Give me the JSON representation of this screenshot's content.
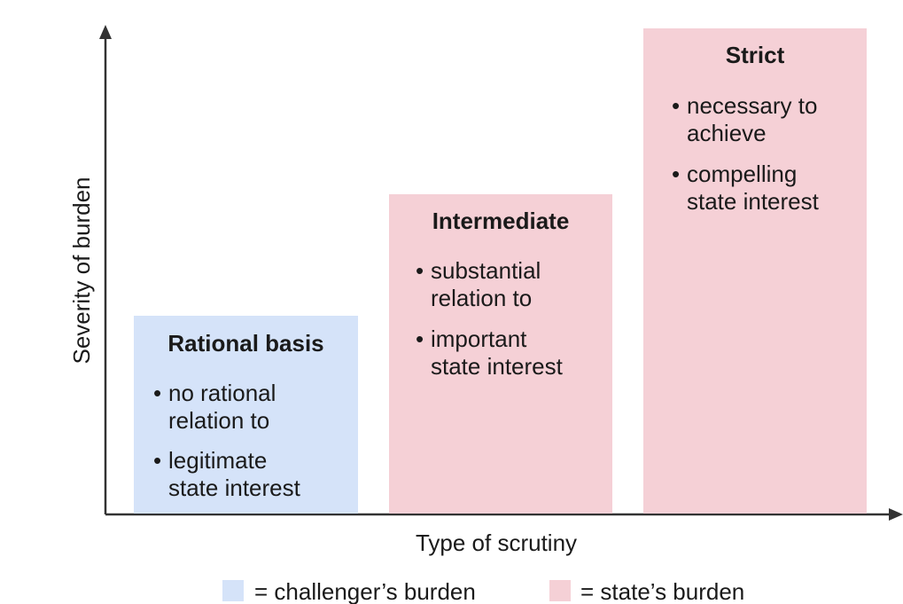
{
  "colors": {
    "challenger": "#d5e3f9",
    "state": "#f5d0d6",
    "axis": "#333333",
    "text": "#1a1a1a"
  },
  "axes": {
    "x_label": "Type of scrutiny",
    "y_label": "Severity of burden"
  },
  "boxes": [
    {
      "title": "Rational basis",
      "burden": "challenger",
      "bullets": [
        [
          "no rational",
          "relation to"
        ],
        [
          "legitimate",
          "state interest"
        ]
      ]
    },
    {
      "title": "Intermediate",
      "burden": "state",
      "bullets": [
        [
          "substantial",
          "relation to"
        ],
        [
          "important",
          "state interest"
        ]
      ]
    },
    {
      "title": "Strict",
      "burden": "state",
      "bullets": [
        [
          "necessary to",
          "achieve"
        ],
        [
          "compelling",
          "state interest"
        ]
      ]
    }
  ],
  "legend": [
    {
      "key": "challenger",
      "label": "= challenger’s burden"
    },
    {
      "key": "state",
      "label": "= state’s burden"
    }
  ]
}
